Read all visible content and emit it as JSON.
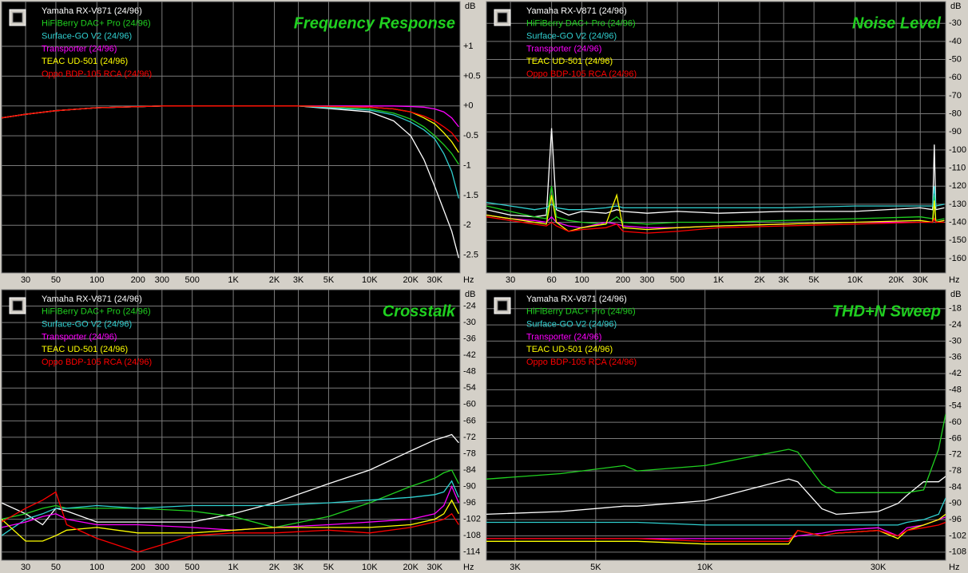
{
  "chart_data": [
    {
      "type": "line",
      "title": "Frequency Response",
      "yunit": "dB",
      "xunit": "Hz",
      "xscale": "log",
      "grid": true,
      "xlim": [
        20,
        46000
      ],
      "ylim": [
        -2.8,
        1.75
      ],
      "xticks": [
        30,
        50,
        100,
        200,
        300,
        500,
        {
          "value": 1000,
          "label": "1K"
        },
        {
          "value": 2000,
          "label": "2K"
        },
        {
          "value": 3000,
          "label": "3K"
        },
        {
          "value": 5000,
          "label": "5K"
        },
        {
          "value": 10000,
          "label": "10K"
        },
        {
          "value": 20000,
          "label": "20K"
        },
        {
          "value": 30000,
          "label": "30K"
        }
      ],
      "yticks": [
        {
          "value": 1,
          "label": "+1"
        },
        {
          "value": 0.5,
          "label": "+0.5"
        },
        {
          "value": 0,
          "label": "+0"
        },
        -0.5,
        -1,
        -1.5,
        -2,
        -2.5
      ],
      "x": [
        20,
        30,
        50,
        100,
        300,
        1000,
        3000,
        10000,
        15000,
        20000,
        25000,
        30000,
        35000,
        40000,
        45000
      ],
      "series": [
        {
          "name": "Yamaha RX-V871 (24/96)",
          "color": "#ffffff",
          "values": [
            -0.2,
            -0.14,
            -0.08,
            -0.03,
            0,
            0,
            0,
            -0.1,
            -0.25,
            -0.5,
            -0.9,
            -1.35,
            -1.75,
            -2.1,
            -2.55
          ]
        },
        {
          "name": "HiFiBerry DAC+ Pro (24/96)",
          "color": "#20d020",
          "values": [
            -0.2,
            -0.14,
            -0.08,
            -0.03,
            0,
            0,
            0,
            -0.05,
            -0.12,
            -0.22,
            -0.35,
            -0.5,
            -0.65,
            -0.8,
            -0.98
          ]
        },
        {
          "name": "Surface-GO V2 (24/96)",
          "color": "#30d0d0",
          "values": [
            -0.2,
            -0.14,
            -0.08,
            -0.03,
            0,
            0,
            0,
            -0.07,
            -0.15,
            -0.27,
            -0.4,
            -0.55,
            -0.8,
            -1.1,
            -1.55
          ]
        },
        {
          "name": "Transporter (24/96)",
          "color": "#ff00ff",
          "values": [
            -0.2,
            -0.14,
            -0.08,
            -0.03,
            0,
            0,
            0,
            0,
            0,
            -0.01,
            -0.02,
            -0.05,
            -0.1,
            -0.2,
            -0.35
          ]
        },
        {
          "name": "TEAC UD-501 (24/96)",
          "color": "#ffff00",
          "values": [
            -0.2,
            -0.14,
            -0.08,
            -0.03,
            0,
            0,
            0,
            -0.02,
            -0.05,
            -0.1,
            -0.2,
            -0.3,
            -0.45,
            -0.6,
            -0.78
          ]
        },
        {
          "name": "Oppo BDP-105 RCA (24/96)",
          "color": "#ff0000",
          "values": [
            -0.2,
            -0.14,
            -0.08,
            -0.03,
            0,
            0,
            0,
            -0.02,
            -0.05,
            -0.1,
            -0.17,
            -0.25,
            -0.35,
            -0.45,
            -0.6
          ]
        }
      ]
    },
    {
      "type": "line",
      "title": "Noise Level",
      "yunit": "dB",
      "xunit": "Hz",
      "xscale": "log",
      "grid": true,
      "xlim": [
        20,
        46000
      ],
      "ylim": [
        -168,
        -18
      ],
      "xticks": [
        30,
        60,
        100,
        200,
        300,
        500,
        {
          "value": 1000,
          "label": "1K"
        },
        {
          "value": 2000,
          "label": "2K"
        },
        {
          "value": 3000,
          "label": "3K"
        },
        {
          "value": 5000,
          "label": "5K"
        },
        {
          "value": 10000,
          "label": "10K"
        },
        {
          "value": 20000,
          "label": "20K"
        },
        {
          "value": 30000,
          "label": "30K"
        }
      ],
      "yticks": [
        -30,
        -40,
        -50,
        -60,
        -70,
        -80,
        -90,
        -100,
        -110,
        -120,
        -130,
        -140,
        -150,
        -160
      ],
      "x": [
        20,
        30,
        45,
        55,
        60,
        65,
        80,
        100,
        150,
        180,
        200,
        300,
        500,
        1000,
        3000,
        10000,
        30000,
        37000,
        38000,
        39000,
        45000
      ],
      "series": [
        {
          "name": "Yamaha RX-V871 (24/96)",
          "color": "#ffffff",
          "values": [
            -133,
            -136,
            -137,
            -136,
            -88,
            -133,
            -136,
            -134,
            -135,
            -133,
            -134,
            -135,
            -134,
            -135,
            -134,
            -134,
            -132,
            -133,
            -97,
            -133,
            -132
          ]
        },
        {
          "name": "HiFiBerry DAC+ Pro (24/96)",
          "color": "#20d020",
          "values": [
            -131,
            -134,
            -137,
            -138,
            -120,
            -137,
            -139,
            -140,
            -141,
            -137,
            -140,
            -141,
            -140,
            -140,
            -139,
            -138,
            -137,
            -138,
            -125,
            -139,
            -138
          ]
        },
        {
          "name": "Surface-GO V2 (24/96)",
          "color": "#30d0d0",
          "values": [
            -129,
            -131,
            -133,
            -132,
            -130,
            -132,
            -133,
            -133,
            -132,
            -131,
            -132,
            -132,
            -132,
            -132,
            -132,
            -131,
            -131,
            -131,
            -120,
            -131,
            -130
          ]
        },
        {
          "name": "Transporter (24/96)",
          "color": "#ff00ff",
          "values": [
            -136,
            -138,
            -139,
            -140,
            -137,
            -140,
            -142,
            -143,
            -140,
            -141,
            -142,
            -143,
            -143,
            -142,
            -141,
            -140,
            -140,
            -140,
            -138,
            -140,
            -139
          ]
        },
        {
          "name": "TEAC UD-501 (24/96)",
          "color": "#ffff00",
          "values": [
            -136,
            -138,
            -140,
            -141,
            -125,
            -140,
            -145,
            -143,
            -141,
            -125,
            -143,
            -144,
            -143,
            -142,
            -141,
            -140,
            -139,
            -140,
            -128,
            -140,
            -139
          ]
        },
        {
          "name": "Oppo BDP-105 RCA (24/96)",
          "color": "#ff0000",
          "values": [
            -137,
            -139,
            -141,
            -142,
            -140,
            -142,
            -145,
            -144,
            -143,
            -141,
            -145,
            -146,
            -145,
            -143,
            -142,
            -141,
            -140,
            -140,
            -138,
            -140,
            -140
          ]
        }
      ]
    },
    {
      "type": "line",
      "title": "Crosstalk",
      "yunit": "dB",
      "xunit": "Hz",
      "xscale": "log",
      "grid": true,
      "xlim": [
        20,
        46000
      ],
      "ylim": [
        -117,
        -18
      ],
      "xticks": [
        30,
        50,
        100,
        200,
        300,
        500,
        {
          "value": 1000,
          "label": "1K"
        },
        {
          "value": 2000,
          "label": "2K"
        },
        {
          "value": 3000,
          "label": "3K"
        },
        {
          "value": 5000,
          "label": "5K"
        },
        {
          "value": 10000,
          "label": "10K"
        },
        {
          "value": 20000,
          "label": "20K"
        },
        {
          "value": 30000,
          "label": "30K"
        }
      ],
      "yticks": [
        -24,
        -30,
        -36,
        -42,
        -48,
        -54,
        -60,
        -66,
        -72,
        -78,
        -84,
        -90,
        -96,
        -102,
        -108,
        -114
      ],
      "x": [
        20,
        30,
        40,
        50,
        60,
        100,
        200,
        500,
        1000,
        2000,
        5000,
        10000,
        20000,
        30000,
        35000,
        40000,
        45000
      ],
      "series": [
        {
          "name": "Yamaha RX-V871 (24/96)",
          "color": "#ffffff",
          "values": [
            -96,
            -100,
            -104,
            -98,
            -99,
            -103,
            -103,
            -103,
            -100,
            -96,
            -89,
            -84,
            -77,
            -73,
            -72,
            -71,
            -74
          ]
        },
        {
          "name": "HiFiBerry DAC+ Pro (24/96)",
          "color": "#20d020",
          "values": [
            -102,
            -100,
            -98,
            -97,
            -98,
            -98,
            -98,
            -99,
            -101,
            -105,
            -101,
            -96,
            -90,
            -87,
            -85,
            -84,
            -89
          ]
        },
        {
          "name": "Surface-GO V2 (24/96)",
          "color": "#30d0d0",
          "values": [
            -108,
            -102,
            -100,
            -98,
            -98,
            -97,
            -98,
            -97,
            -97,
            -97,
            -96,
            -95,
            -94,
            -93,
            -92,
            -88,
            -94
          ]
        },
        {
          "name": "Transporter (24/96)",
          "color": "#ff00ff",
          "values": [
            -105,
            -103,
            -101,
            -100,
            -102,
            -104,
            -104,
            -105,
            -106,
            -105,
            -104,
            -103,
            -102,
            -100,
            -97,
            -90,
            -96
          ]
        },
        {
          "name": "TEAC UD-501 (24/96)",
          "color": "#ffff00",
          "values": [
            -102,
            -110,
            -110,
            -108,
            -106,
            -105,
            -107,
            -107,
            -106,
            -105,
            -105,
            -105,
            -104,
            -102,
            -100,
            -95,
            -100
          ]
        },
        {
          "name": "Oppo BDP-105 RCA (24/96)",
          "color": "#ff0000",
          "values": [
            -103,
            -98,
            -95,
            -92,
            -104,
            -109,
            -114,
            -108,
            -107,
            -107,
            -106,
            -107,
            -105,
            -103,
            -102,
            -100,
            -104
          ]
        }
      ]
    },
    {
      "type": "line",
      "title": "THD+N Sweep",
      "yunit": "dB",
      "xunit": "Hz",
      "xscale": "log",
      "grid": true,
      "xlim": [
        2500,
        46000
      ],
      "ylim": [
        -111,
        -11
      ],
      "xticks": [
        {
          "value": 3000,
          "label": "3K"
        },
        {
          "value": 5000,
          "label": "5K"
        },
        {
          "value": 10000,
          "label": "10K"
        },
        {
          "value": 30000,
          "label": "30K"
        }
      ],
      "yticks": [
        -18,
        -24,
        -30,
        -36,
        -42,
        -48,
        -54,
        -60,
        -66,
        -72,
        -78,
        -84,
        -90,
        -96,
        -102,
        -108
      ],
      "x": [
        2500,
        4000,
        6000,
        6500,
        10000,
        17000,
        18000,
        21000,
        23000,
        30000,
        34000,
        36000,
        40000,
        44000,
        46000
      ],
      "series": [
        {
          "name": "Yamaha RX-V871 (24/96)",
          "color": "#ffffff",
          "values": [
            -94,
            -93,
            -91,
            -91,
            -89,
            -81,
            -82,
            -92,
            -94,
            -93,
            -90,
            -87,
            -82,
            -82,
            -80
          ]
        },
        {
          "name": "HiFiBerry DAC+ Pro (24/96)",
          "color": "#20d020",
          "values": [
            -81,
            -79,
            -76,
            -78,
            -76,
            -70,
            -71,
            -83,
            -86,
            -86,
            -86,
            -86,
            -85,
            -70,
            -57
          ]
        },
        {
          "name": "Surface-GO V2 (24/96)",
          "color": "#30d0d0",
          "values": [
            -97,
            -97,
            -97,
            -97,
            -98,
            -98,
            -98,
            -98,
            -98,
            -98,
            -98,
            -97,
            -96,
            -94,
            -88
          ]
        },
        {
          "name": "Transporter (24/96)",
          "color": "#ff00ff",
          "values": [
            -103,
            -103,
            -103,
            -103,
            -103,
            -103,
            -102,
            -101,
            -100,
            -99,
            -102,
            -99,
            -98,
            -96,
            -95
          ]
        },
        {
          "name": "TEAC UD-501 (24/96)",
          "color": "#ffff00",
          "values": [
            -104,
            -104,
            -104,
            -104,
            -105,
            -105,
            -100,
            -102,
            -101,
            -100,
            -103,
            -100,
            -98,
            -96,
            -94
          ]
        },
        {
          "name": "Oppo BDP-105 RCA (24/96)",
          "color": "#ff0000",
          "values": [
            -103,
            -103,
            -103,
            -103,
            -104,
            -104,
            -100,
            -102,
            -101,
            -100,
            -102,
            -100,
            -99,
            -98,
            -97
          ]
        }
      ]
    }
  ]
}
